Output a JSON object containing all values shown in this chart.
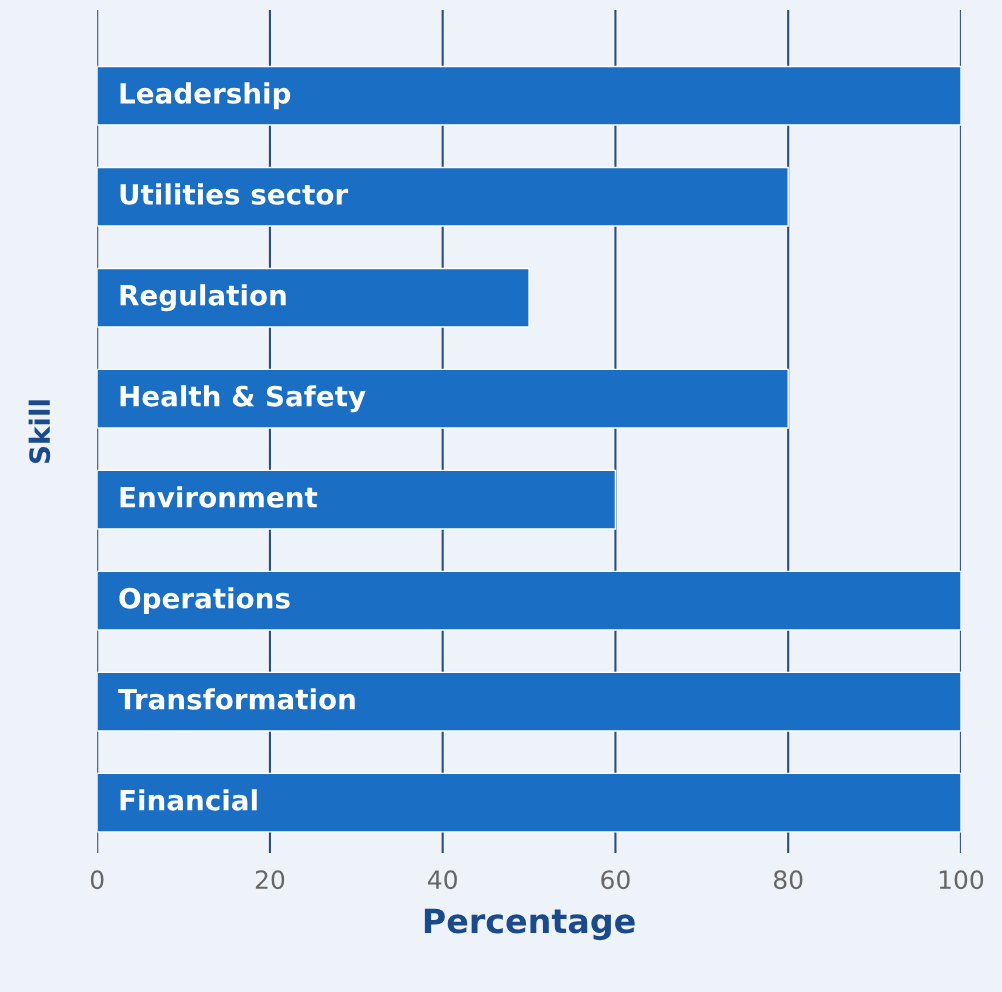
{
  "chart_data": {
    "type": "bar",
    "orientation": "horizontal",
    "xlabel": "Percentage",
    "ylabel": "Skill",
    "categories": [
      "Leadership",
      "Utilities sector",
      "Regulation",
      "Health & Safety",
      "Environment",
      "Operations",
      "Transformation",
      "Financial"
    ],
    "values": [
      100,
      80,
      50,
      80,
      60,
      100,
      100,
      100
    ],
    "color": "#1a6fc4",
    "xlim": [
      0,
      100
    ],
    "xticks": [
      0,
      20,
      40,
      60,
      80,
      100
    ],
    "grid": "x"
  }
}
